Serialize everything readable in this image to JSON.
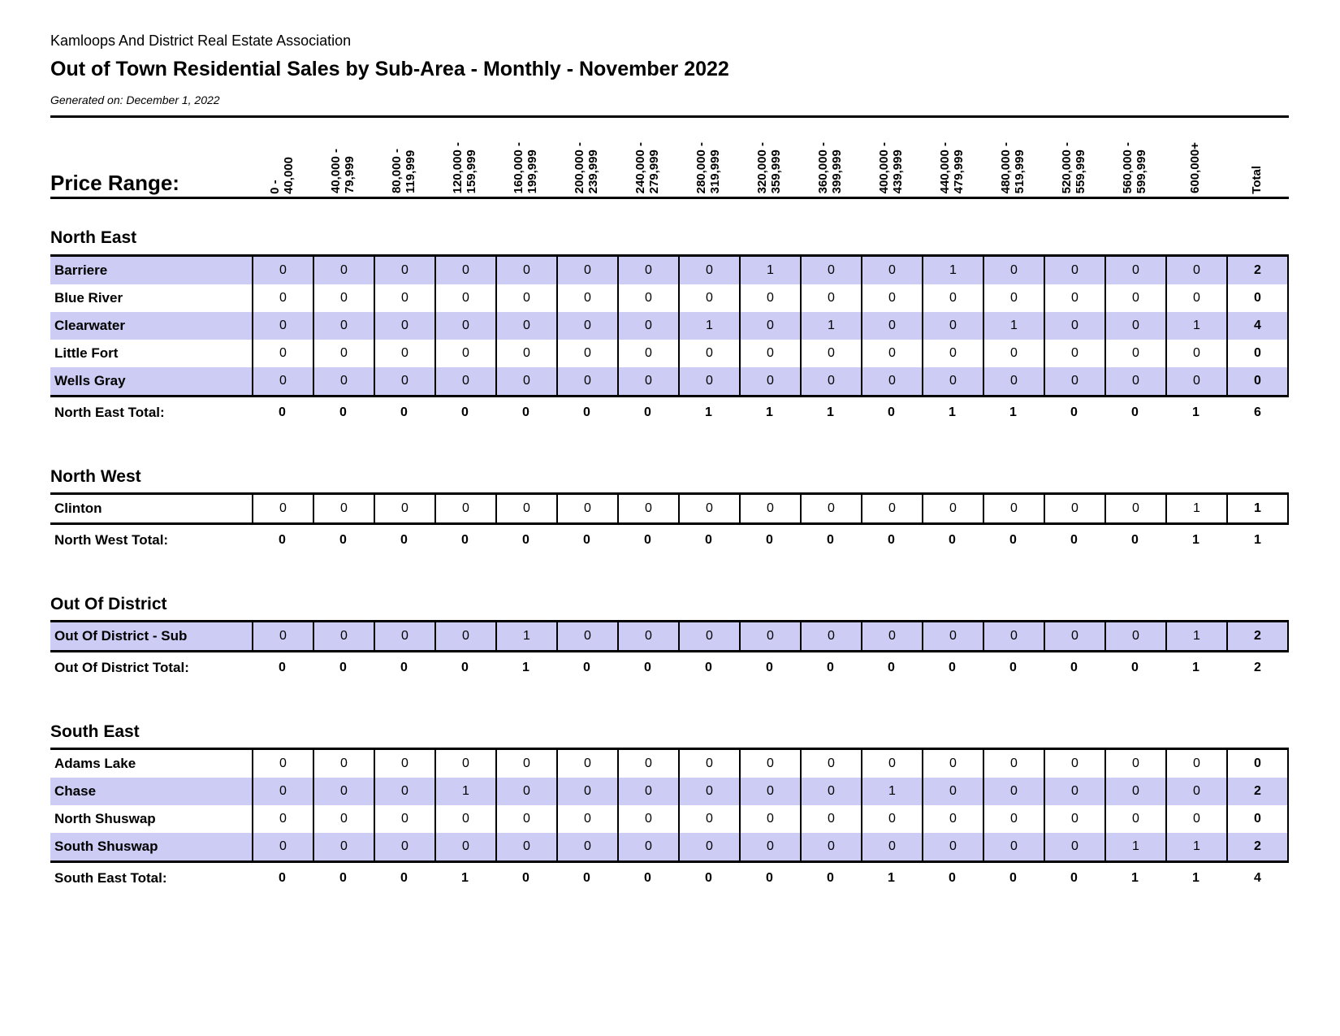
{
  "header": {
    "organization": "Kamloops And District Real Estate Association",
    "title": "Out of Town Residential Sales by Sub-Area - Monthly - November 2022",
    "generated": "Generated on: December 1, 2022"
  },
  "price_range_label": "Price Range:",
  "total_label": "Total",
  "colors": {
    "row_highlight": "#ccccf4",
    "border": "#000000",
    "text": "#000000"
  },
  "columns": [
    "0 -\n40,000",
    "40,000 -\n79,999",
    "80,000 -\n119,999",
    "120,000 -\n159,999",
    "160,000 -\n199,999",
    "200,000 -\n239,999",
    "240,000 -\n279,999",
    "280,000 -\n319,999",
    "320,000 -\n359,999",
    "360,000 -\n399,999",
    "400,000 -\n439,999",
    "440,000 -\n479,999",
    "480,000 -\n519,999",
    "520,000 -\n559,999",
    "560,000 -\n599,999",
    "600,000+"
  ],
  "sections": [
    {
      "name": "North East",
      "rows": [
        {
          "label": "Barriere",
          "highlight": true,
          "values": [
            0,
            0,
            0,
            0,
            0,
            0,
            0,
            0,
            1,
            0,
            0,
            1,
            0,
            0,
            0,
            0
          ],
          "total": 2
        },
        {
          "label": "Blue River",
          "highlight": false,
          "values": [
            0,
            0,
            0,
            0,
            0,
            0,
            0,
            0,
            0,
            0,
            0,
            0,
            0,
            0,
            0,
            0
          ],
          "total": 0
        },
        {
          "label": "Clearwater",
          "highlight": true,
          "values": [
            0,
            0,
            0,
            0,
            0,
            0,
            0,
            1,
            0,
            1,
            0,
            0,
            1,
            0,
            0,
            1
          ],
          "total": 4
        },
        {
          "label": "Little Fort",
          "highlight": false,
          "values": [
            0,
            0,
            0,
            0,
            0,
            0,
            0,
            0,
            0,
            0,
            0,
            0,
            0,
            0,
            0,
            0
          ],
          "total": 0
        },
        {
          "label": "Wells Gray",
          "highlight": true,
          "values": [
            0,
            0,
            0,
            0,
            0,
            0,
            0,
            0,
            0,
            0,
            0,
            0,
            0,
            0,
            0,
            0
          ],
          "total": 0
        }
      ],
      "total_row": {
        "label": "North East Total:",
        "values": [
          0,
          0,
          0,
          0,
          0,
          0,
          0,
          1,
          1,
          1,
          0,
          1,
          1,
          0,
          0,
          1
        ],
        "total": 6
      }
    },
    {
      "name": "North West",
      "rows": [
        {
          "label": "Clinton",
          "highlight": false,
          "values": [
            0,
            0,
            0,
            0,
            0,
            0,
            0,
            0,
            0,
            0,
            0,
            0,
            0,
            0,
            0,
            1
          ],
          "total": 1
        }
      ],
      "total_row": {
        "label": "North West Total:",
        "values": [
          0,
          0,
          0,
          0,
          0,
          0,
          0,
          0,
          0,
          0,
          0,
          0,
          0,
          0,
          0,
          1
        ],
        "total": 1
      }
    },
    {
      "name": "Out Of District",
      "rows": [
        {
          "label": "Out Of District - Sub",
          "highlight": true,
          "values": [
            0,
            0,
            0,
            0,
            1,
            0,
            0,
            0,
            0,
            0,
            0,
            0,
            0,
            0,
            0,
            1
          ],
          "total": 2
        }
      ],
      "total_row": {
        "label": "Out Of District Total:",
        "values": [
          0,
          0,
          0,
          0,
          1,
          0,
          0,
          0,
          0,
          0,
          0,
          0,
          0,
          0,
          0,
          1
        ],
        "total": 2
      }
    },
    {
      "name": "South East",
      "rows": [
        {
          "label": "Adams Lake",
          "highlight": false,
          "values": [
            0,
            0,
            0,
            0,
            0,
            0,
            0,
            0,
            0,
            0,
            0,
            0,
            0,
            0,
            0,
            0
          ],
          "total": 0
        },
        {
          "label": "Chase",
          "highlight": true,
          "values": [
            0,
            0,
            0,
            1,
            0,
            0,
            0,
            0,
            0,
            0,
            1,
            0,
            0,
            0,
            0,
            0
          ],
          "total": 2
        },
        {
          "label": "North Shuswap",
          "highlight": false,
          "values": [
            0,
            0,
            0,
            0,
            0,
            0,
            0,
            0,
            0,
            0,
            0,
            0,
            0,
            0,
            0,
            0
          ],
          "total": 0
        },
        {
          "label": "South Shuswap",
          "highlight": true,
          "values": [
            0,
            0,
            0,
            0,
            0,
            0,
            0,
            0,
            0,
            0,
            0,
            0,
            0,
            0,
            1,
            1
          ],
          "total": 2
        }
      ],
      "total_row": {
        "label": "South East Total:",
        "values": [
          0,
          0,
          0,
          1,
          0,
          0,
          0,
          0,
          0,
          0,
          1,
          0,
          0,
          0,
          1,
          1
        ],
        "total": 4
      }
    }
  ]
}
